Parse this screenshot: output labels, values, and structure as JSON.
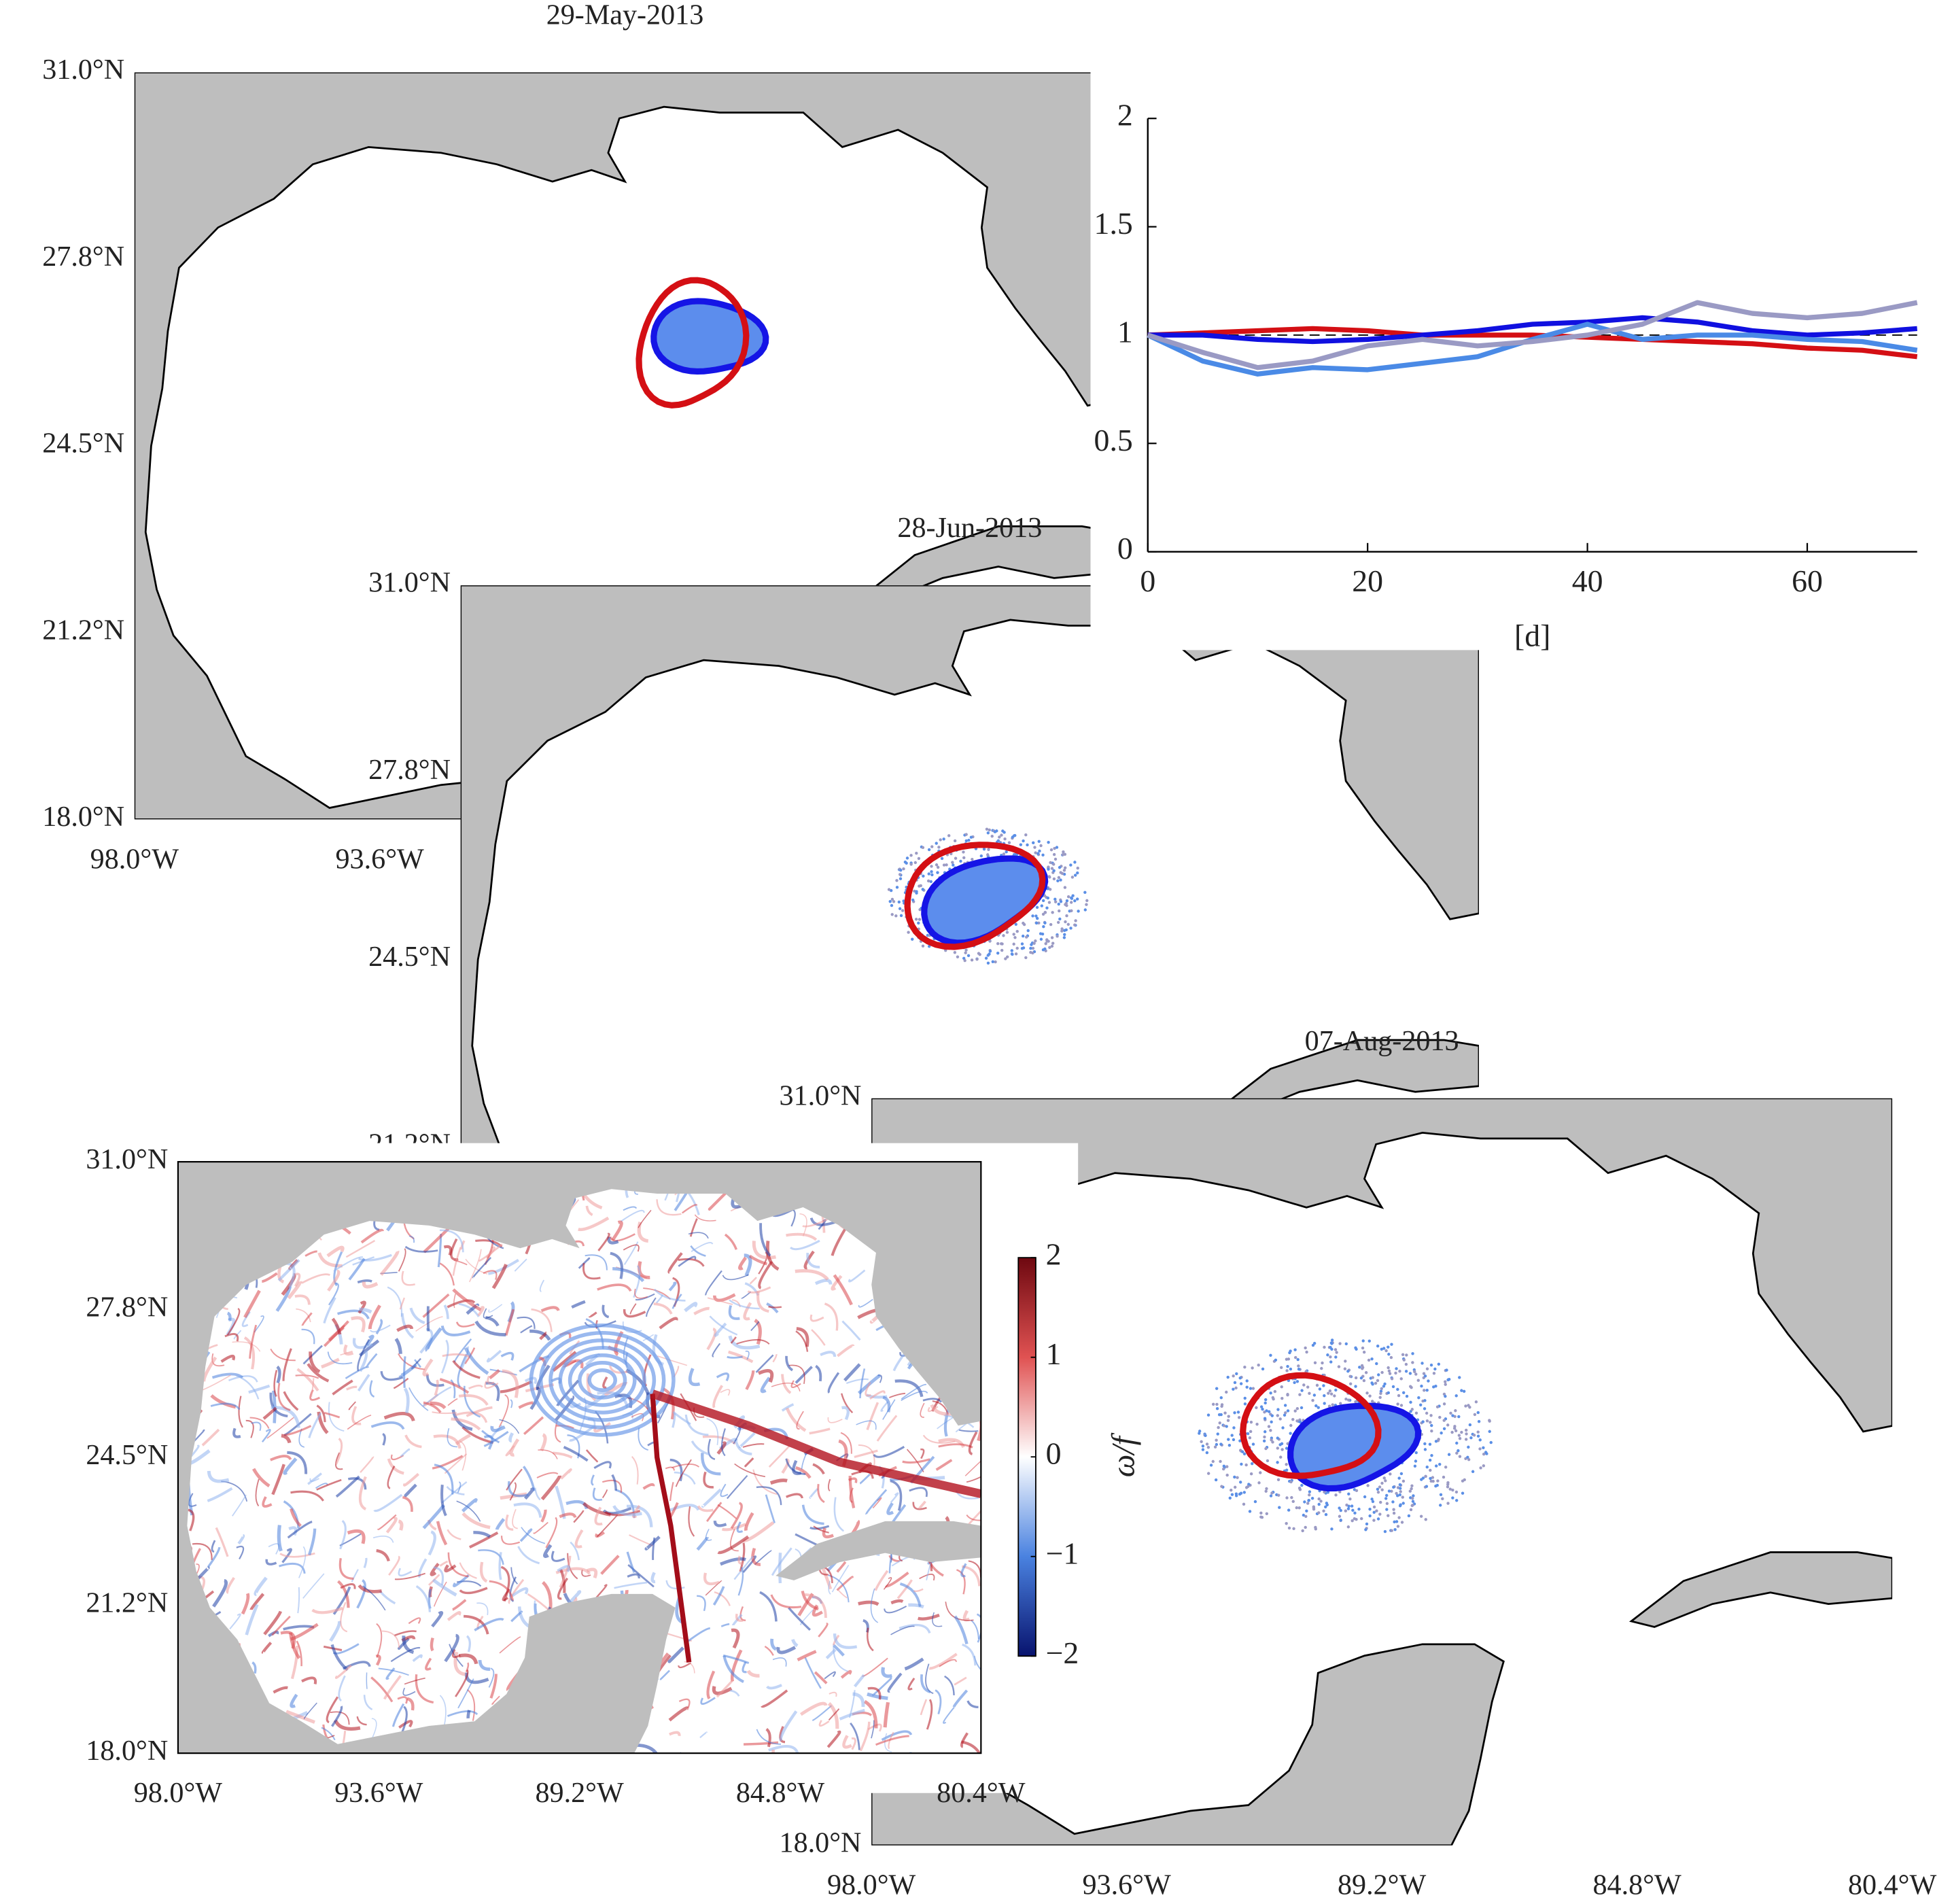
{
  "chart_data": {
    "type": "line",
    "xlabel": "[d]",
    "x": [
      0,
      5,
      10,
      15,
      20,
      25,
      30,
      35,
      40,
      45,
      50,
      55,
      60,
      65,
      70
    ],
    "series": [
      {
        "color": "#d40f14",
        "values": [
          1,
          1.01,
          1.02,
          1.03,
          1.02,
          1.0,
          1.0,
          1.0,
          0.99,
          0.98,
          0.97,
          0.96,
          0.94,
          0.93,
          0.9
        ]
      },
      {
        "color": "#1010e0",
        "values": [
          1,
          1.0,
          0.98,
          0.97,
          0.98,
          1.0,
          1.02,
          1.05,
          1.06,
          1.08,
          1.06,
          1.02,
          1.0,
          1.01,
          1.03
        ]
      },
      {
        "color": "#4a8ae6",
        "values": [
          1,
          0.88,
          0.82,
          0.85,
          0.84,
          0.87,
          0.9,
          0.98,
          1.05,
          0.98,
          1.0,
          1.0,
          0.98,
          0.97,
          0.93
        ]
      },
      {
        "color": "#9a9ac4",
        "values": [
          1,
          0.92,
          0.85,
          0.88,
          0.95,
          0.98,
          0.95,
          0.97,
          1.0,
          1.05,
          1.15,
          1.1,
          1.08,
          1.1,
          1.15
        ]
      }
    ],
    "reference_line": 1,
    "xlim": [
      0,
      70
    ],
    "ylim": [
      0,
      2
    ],
    "xticks": [
      0,
      20,
      40,
      60
    ],
    "yticks": [
      0,
      0.5,
      1,
      1.5,
      2
    ]
  },
  "panels": [
    {
      "date": "29-May-2013",
      "lat_labels": [
        "31.0°N",
        "27.8°N",
        "24.5°N",
        "21.2°N",
        "18.0°N"
      ],
      "lon_labels": [
        "98.0°W",
        "93.6°W"
      ]
    },
    {
      "date": "28-Jun-2013",
      "lat_labels": [
        "31.0°N",
        "27.8°N",
        "24.5°N",
        "21.2°N"
      ],
      "lon_labels": []
    },
    {
      "date": "07-Aug-2013",
      "lat_labels": [
        "31.0°N",
        "27.8°N",
        "24.5°N",
        "21.2°N",
        "18.0°N"
      ],
      "lon_labels": [
        "98.0°W",
        "93.6°W",
        "89.2°W",
        "84.8°W",
        "80.4°W"
      ]
    },
    {
      "lat_labels": [
        "31.0°N",
        "27.8°N",
        "24.5°N",
        "21.2°N",
        "18.0°N"
      ],
      "lon_labels": [
        "98.0°W",
        "93.6°W",
        "89.2°W",
        "84.8°W",
        "80.4°W"
      ]
    }
  ],
  "colorbar": {
    "label": "ω/f",
    "lim": [
      -2,
      2
    ],
    "ticks": [
      {
        "value": -2,
        "label": "−2"
      },
      {
        "value": -1,
        "label": "−1"
      },
      0,
      1,
      2
    ]
  }
}
